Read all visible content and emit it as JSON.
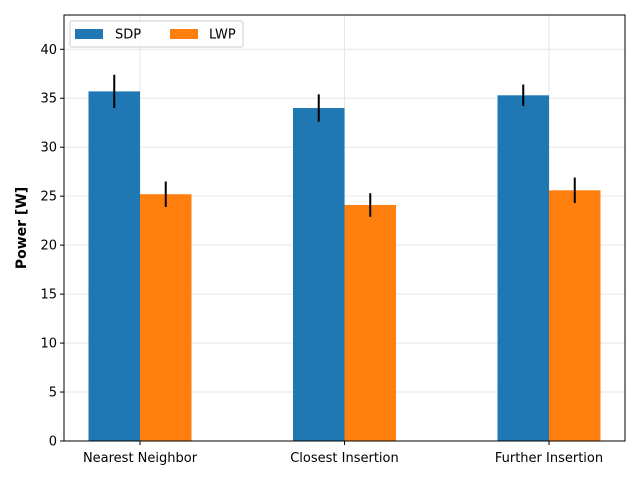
{
  "chart_data": {
    "type": "bar",
    "categories": [
      "Nearest Neighbor",
      "Closest Insertion",
      "Further Insertion"
    ],
    "series": [
      {
        "name": "SDP",
        "values": [
          35.7,
          34.0,
          35.3
        ],
        "errors": [
          1.7,
          1.4,
          1.1
        ],
        "color": "#1f77b4"
      },
      {
        "name": "LWP",
        "values": [
          25.2,
          24.1,
          25.6
        ],
        "errors": [
          1.3,
          1.2,
          1.3
        ],
        "color": "#ff7f0e"
      }
    ],
    "xlabel": "",
    "ylabel": "Power [W]",
    "ylim": [
      0,
      43.5
    ],
    "yticks": [
      0,
      5,
      10,
      15,
      20,
      25,
      30,
      35,
      40
    ],
    "grid": true,
    "legend_position": "top-left"
  }
}
